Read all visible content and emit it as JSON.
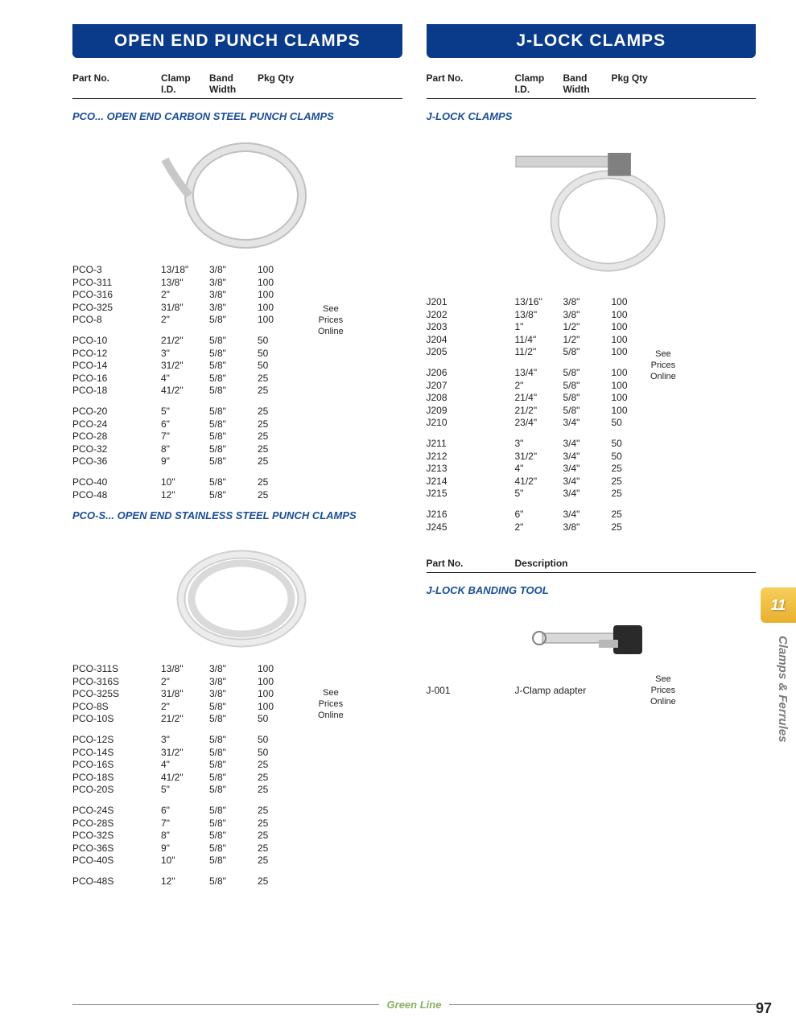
{
  "left": {
    "banner": "OPEN END PUNCH CLAMPS",
    "headers": {
      "part": "Part No.",
      "id": "Clamp\nI.D.",
      "band": "Band\nWidth",
      "qty": "Pkg Qty"
    },
    "section1": {
      "title": "PCO... OPEN END CARBON STEEL PUNCH CLAMPS",
      "groups": [
        [
          {
            "p": "PCO-3",
            "id": "13/18\"",
            "bw": "3/8\"",
            "q": "100"
          },
          {
            "p": "PCO-311",
            "id": "13/8\"",
            "bw": "3/8\"",
            "q": "100"
          },
          {
            "p": "PCO-316",
            "id": "2\"",
            "bw": "3/8\"",
            "q": "100"
          },
          {
            "p": "PCO-325",
            "id": "31/8\"",
            "bw": "3/8\"",
            "q": "100"
          },
          {
            "p": "PCO-8",
            "id": "2\"",
            "bw": "5/8\"",
            "q": "100"
          }
        ],
        [
          {
            "p": "PCO-10",
            "id": "21/2\"",
            "bw": "5/8\"",
            "q": "50"
          },
          {
            "p": "PCO-12",
            "id": "3\"",
            "bw": "5/8\"",
            "q": "50"
          },
          {
            "p": "PCO-14",
            "id": "31/2\"",
            "bw": "5/8\"",
            "q": "50"
          },
          {
            "p": "PCO-16",
            "id": "4\"",
            "bw": "5/8\"",
            "q": "25"
          },
          {
            "p": "PCO-18",
            "id": "41/2\"",
            "bw": "5/8\"",
            "q": "25"
          }
        ],
        [
          {
            "p": "PCO-20",
            "id": "5\"",
            "bw": "5/8\"",
            "q": "25"
          },
          {
            "p": "PCO-24",
            "id": "6\"",
            "bw": "5/8\"",
            "q": "25"
          },
          {
            "p": "PCO-28",
            "id": "7\"",
            "bw": "5/8\"",
            "q": "25"
          },
          {
            "p": "PCO-32",
            "id": "8\"",
            "bw": "5/8\"",
            "q": "25"
          },
          {
            "p": "PCO-36",
            "id": "9\"",
            "bw": "5/8\"",
            "q": "25"
          }
        ],
        [
          {
            "p": "PCO-40",
            "id": "10\"",
            "bw": "5/8\"",
            "q": "25"
          },
          {
            "p": "PCO-48",
            "id": "12\"",
            "bw": "5/8\"",
            "q": "25"
          }
        ]
      ]
    },
    "section2": {
      "title": "PCO-S... OPEN END STAINLESS STEEL PUNCH CLAMPS",
      "groups": [
        [
          {
            "p": "PCO-311S",
            "id": "13/8\"",
            "bw": "3/8\"",
            "q": "100"
          },
          {
            "p": "PCO-316S",
            "id": "2\"",
            "bw": "3/8\"",
            "q": "100"
          },
          {
            "p": "PCO-325S",
            "id": "31/8\"",
            "bw": "3/8\"",
            "q": "100"
          },
          {
            "p": "PCO-8S",
            "id": "2\"",
            "bw": "5/8\"",
            "q": "100"
          },
          {
            "p": "PCO-10S",
            "id": "21/2\"",
            "bw": "5/8\"",
            "q": "50"
          }
        ],
        [
          {
            "p": "PCO-12S",
            "id": "3\"",
            "bw": "5/8\"",
            "q": "50"
          },
          {
            "p": "PCO-14S",
            "id": "31/2\"",
            "bw": "5/8\"",
            "q": "50"
          },
          {
            "p": "PCO-16S",
            "id": "4\"",
            "bw": "5/8\"",
            "q": "25"
          },
          {
            "p": "PCO-18S",
            "id": "41/2\"",
            "bw": "5/8\"",
            "q": "25"
          },
          {
            "p": "PCO-20S",
            "id": "5\"",
            "bw": "5/8\"",
            "q": "25"
          }
        ],
        [
          {
            "p": "PCO-24S",
            "id": "6\"",
            "bw": "5/8\"",
            "q": "25"
          },
          {
            "p": "PCO-28S",
            "id": "7\"",
            "bw": "5/8\"",
            "q": "25"
          },
          {
            "p": "PCO-32S",
            "id": "8\"",
            "bw": "5/8\"",
            "q": "25"
          },
          {
            "p": "PCO-36S",
            "id": "9\"",
            "bw": "5/8\"",
            "q": "25"
          },
          {
            "p": "PCO-40S",
            "id": "10\"",
            "bw": "5/8\"",
            "q": "25"
          }
        ],
        [
          {
            "p": "PCO-48S",
            "id": "12\"",
            "bw": "5/8\"",
            "q": "25"
          }
        ]
      ]
    }
  },
  "right": {
    "banner": "J-LOCK CLAMPS",
    "headers": {
      "part": "Part No.",
      "id": "Clamp\nI.D.",
      "band": "Band\nWidth",
      "qty": "Pkg Qty"
    },
    "section1": {
      "title": "J-LOCK CLAMPS",
      "groups": [
        [
          {
            "p": "J201",
            "id": "13/16\"",
            "bw": "3/8\"",
            "q": "100"
          },
          {
            "p": "J202",
            "id": "13/8\"",
            "bw": "3/8\"",
            "q": "100"
          },
          {
            "p": "J203",
            "id": "1\"",
            "bw": "1/2\"",
            "q": "100"
          },
          {
            "p": "J204",
            "id": "11/4\"",
            "bw": "1/2\"",
            "q": "100"
          },
          {
            "p": "J205",
            "id": "11/2\"",
            "bw": "5/8\"",
            "q": "100"
          }
        ],
        [
          {
            "p": "J206",
            "id": "13/4\"",
            "bw": "5/8\"",
            "q": "100"
          },
          {
            "p": "J207",
            "id": "2\"",
            "bw": "5/8\"",
            "q": "100"
          },
          {
            "p": "J208",
            "id": "21/4\"",
            "bw": "5/8\"",
            "q": "100"
          },
          {
            "p": "J209",
            "id": "21/2\"",
            "bw": "5/8\"",
            "q": "100"
          },
          {
            "p": "J210",
            "id": "23/4\"",
            "bw": "3/4\"",
            "q": "50"
          }
        ],
        [
          {
            "p": "J211",
            "id": "3\"",
            "bw": "3/4\"",
            "q": "50"
          },
          {
            "p": "J212",
            "id": "31/2\"",
            "bw": "3/4\"",
            "q": "50"
          },
          {
            "p": "J213",
            "id": "4\"",
            "bw": "3/4\"",
            "q": "25"
          },
          {
            "p": "J214",
            "id": "41/2\"",
            "bw": "3/4\"",
            "q": "25"
          },
          {
            "p": "J215",
            "id": "5\"",
            "bw": "3/4\"",
            "q": "25"
          }
        ],
        [
          {
            "p": "J216",
            "id": "6\"",
            "bw": "3/4\"",
            "q": "25"
          },
          {
            "p": "J245",
            "id": "2\"",
            "bw": "3/8\"",
            "q": "25"
          }
        ]
      ]
    },
    "section2": {
      "title": "J-LOCK BANDING TOOL",
      "headers": {
        "part": "Part No.",
        "desc": "Description"
      },
      "rows": [
        {
          "p": "J-001",
          "d": "J-Clamp adapter"
        }
      ]
    }
  },
  "price_note": "See\nPrices\nOnline",
  "side_tab": "11",
  "side_label": "Clamps & Ferrules",
  "footer": "Green Line",
  "page_num": "97",
  "colors": {
    "banner": "#0a3a8a",
    "title": "#1a4d9a",
    "tab": "#e8b030",
    "brand": "#8ab060"
  }
}
